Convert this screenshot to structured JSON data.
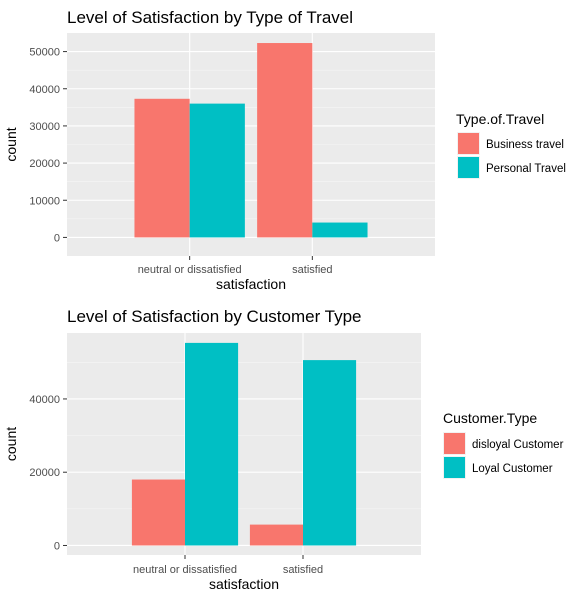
{
  "chart_data": [
    {
      "type": "bar",
      "title": "Level of Satisfaction by Type of Travel",
      "xlabel": "satisfaction",
      "ylabel": "count",
      "categories": [
        "neutral or dissatisfied",
        "satisfied"
      ],
      "series": [
        {
          "name": "Business travel",
          "values": [
            37300,
            52300
          ],
          "color": "#F8766D"
        },
        {
          "name": "Personal Travel",
          "values": [
            36000,
            4000
          ],
          "color": "#00BFC4"
        }
      ],
      "ylim": [
        -5000,
        55000
      ],
      "yticks": [
        0,
        10000,
        20000,
        30000,
        40000,
        50000
      ],
      "grid": true,
      "legend_title": "Type.of.Travel",
      "legend_position": "right"
    },
    {
      "type": "bar",
      "title": "Level of Satisfaction by Customer Type",
      "xlabel": "satisfaction",
      "ylabel": "count",
      "categories": [
        "neutral or dissatisfied",
        "satisfied"
      ],
      "series": [
        {
          "name": "disloyal Customer",
          "values": [
            18000,
            5700
          ],
          "color": "#F8766D"
        },
        {
          "name": "Loyal Customer",
          "values": [
            55300,
            50600
          ],
          "color": "#00BFC4"
        }
      ],
      "ylim": [
        -2600,
        58000
      ],
      "yticks": [
        0,
        20000,
        40000
      ],
      "grid": true,
      "legend_title": "Customer.Type",
      "legend_position": "right"
    }
  ]
}
